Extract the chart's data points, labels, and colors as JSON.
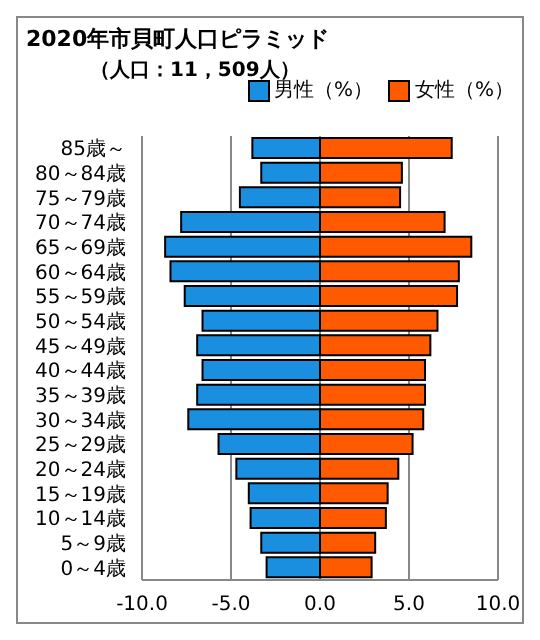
{
  "chart_data": {
    "type": "bar",
    "orientation": "horizontal",
    "stacked": true,
    "title": "2020年市貝町人口ピラミッド",
    "subtitle": "（人口：11，509人）",
    "categories": [
      "85歳～",
      "80～84歳",
      "75～79歳",
      "70～74歳",
      "65～69歳",
      "60～64歳",
      "55～59歳",
      "50～54歳",
      "45～49歳",
      "40～44歳",
      "35～39歳",
      "30～34歳",
      "25～29歳",
      "20～24歳",
      "15～19歳",
      "10～14歳",
      "5～9歳",
      "0～4歳"
    ],
    "series": [
      {
        "name": "男性（%）",
        "color": "#1a8fe0",
        "values": [
          -3.8,
          -3.3,
          -4.5,
          -7.8,
          -8.7,
          -8.4,
          -7.6,
          -6.6,
          -6.9,
          -6.6,
          -6.9,
          -7.4,
          -5.7,
          -4.7,
          -4.0,
          -3.9,
          -3.3,
          -3.0
        ]
      },
      {
        "name": "女性（%）",
        "color": "#ff5a00",
        "values": [
          7.4,
          4.6,
          4.5,
          7.0,
          8.5,
          7.8,
          7.7,
          6.6,
          6.2,
          5.9,
          5.9,
          5.8,
          5.2,
          4.4,
          3.8,
          3.7,
          3.1,
          2.9
        ]
      }
    ],
    "xlim": [
      -10,
      10
    ],
    "xticks": [
      {
        "value": -10,
        "label": "-10.0"
      },
      {
        "value": -5,
        "label": "-5.0"
      },
      {
        "value": 0,
        "label": "0.0"
      },
      {
        "value": 5,
        "label": "5.0"
      },
      {
        "value": 10,
        "label": "10.0"
      }
    ],
    "grid": "x",
    "legend": "top right"
  }
}
